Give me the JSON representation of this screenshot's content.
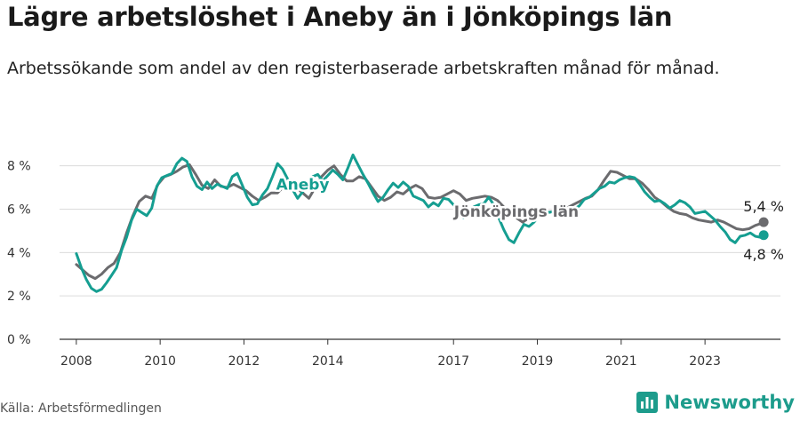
{
  "header": {
    "title": "Lägre arbetslöshet i Aneby än i Jönköpings län",
    "subtitle": "Arbetssökande som andel av den registerbaserade arbetskraften månad för månad."
  },
  "footer": {
    "source": "Källa: Arbetsförmedlingen",
    "brand": "Newsworthy"
  },
  "colors": {
    "aneby": "#159e91",
    "lan": "#6b6b6e",
    "grid": "#dcdcdc",
    "axis": "#333333",
    "brand": "#1d9c8c"
  },
  "chart_data": {
    "type": "line",
    "title": "Lägre arbetslöshet i Aneby än i Jönköpings län",
    "ylabel": "",
    "xlabel": "",
    "ylim": [
      0,
      8.6
    ],
    "xlim": [
      2007.6,
      2024.8
    ],
    "y_ticks": [
      0,
      2,
      4,
      6,
      8
    ],
    "y_tick_labels": [
      "0 %",
      "2 %",
      "4 %",
      "6 %",
      "8 %"
    ],
    "x_ticks": [
      2008,
      2010,
      2012,
      2014,
      2017,
      2019,
      2021,
      2023
    ],
    "x_tick_labels": [
      "2008",
      "2010",
      "2012",
      "2014",
      "2017",
      "2019",
      "2021",
      "2023"
    ],
    "grid": true,
    "series": [
      {
        "name": "Jönköpings län",
        "end_label": "5,4 %",
        "end_value": 5.4,
        "points": [
          [
            2008.0,
            3.45
          ],
          [
            2008.15,
            3.2
          ],
          [
            2008.3,
            2.95
          ],
          [
            2008.45,
            2.8
          ],
          [
            2008.6,
            3.0
          ],
          [
            2008.75,
            3.3
          ],
          [
            2008.9,
            3.5
          ],
          [
            2009.05,
            4.0
          ],
          [
            2009.2,
            4.9
          ],
          [
            2009.35,
            5.7
          ],
          [
            2009.5,
            6.35
          ],
          [
            2009.65,
            6.6
          ],
          [
            2009.8,
            6.5
          ],
          [
            2009.95,
            7.15
          ],
          [
            2010.1,
            7.5
          ],
          [
            2010.25,
            7.6
          ],
          [
            2010.4,
            7.75
          ],
          [
            2010.55,
            7.95
          ],
          [
            2010.7,
            8.05
          ],
          [
            2010.85,
            7.6
          ],
          [
            2011.0,
            7.1
          ],
          [
            2011.15,
            6.95
          ],
          [
            2011.3,
            7.35
          ],
          [
            2011.45,
            7.05
          ],
          [
            2011.6,
            7.0
          ],
          [
            2011.75,
            7.15
          ],
          [
            2011.9,
            7.0
          ],
          [
            2012.05,
            6.85
          ],
          [
            2012.2,
            6.6
          ],
          [
            2012.35,
            6.4
          ],
          [
            2012.5,
            6.55
          ],
          [
            2012.65,
            6.75
          ],
          [
            2012.8,
            6.75
          ],
          [
            2012.95,
            7.05
          ],
          [
            2013.1,
            7.3
          ],
          [
            2013.25,
            7.0
          ],
          [
            2013.4,
            6.75
          ],
          [
            2013.55,
            6.5
          ],
          [
            2013.7,
            7.0
          ],
          [
            2013.85,
            7.5
          ],
          [
            2014.0,
            7.8
          ],
          [
            2014.15,
            8.0
          ],
          [
            2014.3,
            7.6
          ],
          [
            2014.45,
            7.3
          ],
          [
            2014.6,
            7.3
          ],
          [
            2014.75,
            7.5
          ],
          [
            2014.9,
            7.4
          ],
          [
            2015.05,
            7.0
          ],
          [
            2015.2,
            6.6
          ],
          [
            2015.35,
            6.4
          ],
          [
            2015.5,
            6.55
          ],
          [
            2015.65,
            6.8
          ],
          [
            2015.8,
            6.7
          ],
          [
            2015.95,
            6.95
          ],
          [
            2016.1,
            7.1
          ],
          [
            2016.25,
            6.95
          ],
          [
            2016.4,
            6.55
          ],
          [
            2016.55,
            6.5
          ],
          [
            2016.7,
            6.55
          ],
          [
            2016.85,
            6.7
          ],
          [
            2017.0,
            6.85
          ],
          [
            2017.15,
            6.7
          ],
          [
            2017.3,
            6.4
          ],
          [
            2017.45,
            6.5
          ],
          [
            2017.6,
            6.55
          ],
          [
            2017.75,
            6.6
          ],
          [
            2017.9,
            6.55
          ],
          [
            2018.05,
            6.4
          ],
          [
            2018.2,
            6.1
          ],
          [
            2018.35,
            5.7
          ],
          [
            2018.5,
            5.6
          ],
          [
            2018.65,
            5.4
          ],
          [
            2018.8,
            5.6
          ],
          [
            2018.95,
            5.75
          ],
          [
            2019.1,
            5.9
          ],
          [
            2019.25,
            5.85
          ],
          [
            2019.4,
            5.9
          ],
          [
            2019.55,
            6.0
          ],
          [
            2019.7,
            6.05
          ],
          [
            2019.85,
            6.2
          ],
          [
            2020.0,
            6.35
          ],
          [
            2020.15,
            6.5
          ],
          [
            2020.3,
            6.6
          ],
          [
            2020.45,
            6.9
          ],
          [
            2020.6,
            7.35
          ],
          [
            2020.75,
            7.75
          ],
          [
            2020.9,
            7.7
          ],
          [
            2021.05,
            7.55
          ],
          [
            2021.2,
            7.4
          ],
          [
            2021.35,
            7.4
          ],
          [
            2021.5,
            7.2
          ],
          [
            2021.65,
            6.9
          ],
          [
            2021.8,
            6.55
          ],
          [
            2021.95,
            6.35
          ],
          [
            2022.1,
            6.1
          ],
          [
            2022.25,
            5.9
          ],
          [
            2022.4,
            5.8
          ],
          [
            2022.55,
            5.75
          ],
          [
            2022.7,
            5.6
          ],
          [
            2022.85,
            5.5
          ],
          [
            2023.0,
            5.45
          ],
          [
            2023.15,
            5.4
          ],
          [
            2023.3,
            5.5
          ],
          [
            2023.45,
            5.4
          ],
          [
            2023.6,
            5.25
          ],
          [
            2023.75,
            5.1
          ],
          [
            2023.9,
            5.05
          ],
          [
            2024.05,
            5.1
          ],
          [
            2024.2,
            5.25
          ],
          [
            2024.35,
            5.35
          ],
          [
            2024.4,
            5.4
          ]
        ]
      },
      {
        "name": "Aneby",
        "end_label": "4,8 %",
        "end_value": 4.8,
        "points": [
          [
            2008.0,
            3.95
          ],
          [
            2008.12,
            3.3
          ],
          [
            2008.24,
            2.75
          ],
          [
            2008.36,
            2.35
          ],
          [
            2008.48,
            2.2
          ],
          [
            2008.6,
            2.3
          ],
          [
            2008.72,
            2.6
          ],
          [
            2008.84,
            2.95
          ],
          [
            2008.96,
            3.3
          ],
          [
            2009.08,
            4.1
          ],
          [
            2009.2,
            4.7
          ],
          [
            2009.32,
            5.5
          ],
          [
            2009.44,
            6.0
          ],
          [
            2009.56,
            5.85
          ],
          [
            2009.68,
            5.7
          ],
          [
            2009.8,
            6.05
          ],
          [
            2009.92,
            7.05
          ],
          [
            2010.04,
            7.45
          ],
          [
            2010.16,
            7.55
          ],
          [
            2010.28,
            7.65
          ],
          [
            2010.4,
            8.1
          ],
          [
            2010.52,
            8.35
          ],
          [
            2010.64,
            8.2
          ],
          [
            2010.76,
            7.5
          ],
          [
            2010.88,
            7.05
          ],
          [
            2011.0,
            6.9
          ],
          [
            2011.12,
            7.25
          ],
          [
            2011.24,
            6.95
          ],
          [
            2011.36,
            7.15
          ],
          [
            2011.48,
            7.05
          ],
          [
            2011.6,
            6.95
          ],
          [
            2011.72,
            7.5
          ],
          [
            2011.84,
            7.65
          ],
          [
            2011.96,
            7.1
          ],
          [
            2012.08,
            6.55
          ],
          [
            2012.2,
            6.2
          ],
          [
            2012.32,
            6.25
          ],
          [
            2012.44,
            6.65
          ],
          [
            2012.56,
            6.95
          ],
          [
            2012.68,
            7.5
          ],
          [
            2012.8,
            8.1
          ],
          [
            2012.92,
            7.85
          ],
          [
            2013.04,
            7.4
          ],
          [
            2013.16,
            6.9
          ],
          [
            2013.28,
            6.5
          ],
          [
            2013.4,
            6.8
          ],
          [
            2013.52,
            7.2
          ],
          [
            2013.64,
            7.5
          ],
          [
            2013.76,
            7.6
          ],
          [
            2013.88,
            7.3
          ],
          [
            2014.0,
            7.55
          ],
          [
            2014.12,
            7.8
          ],
          [
            2014.24,
            7.6
          ],
          [
            2014.36,
            7.35
          ],
          [
            2014.48,
            7.9
          ],
          [
            2014.6,
            8.5
          ],
          [
            2014.72,
            8.05
          ],
          [
            2014.84,
            7.6
          ],
          [
            2014.96,
            7.2
          ],
          [
            2015.08,
            6.75
          ],
          [
            2015.2,
            6.35
          ],
          [
            2015.32,
            6.55
          ],
          [
            2015.44,
            6.9
          ],
          [
            2015.56,
            7.2
          ],
          [
            2015.68,
            7.0
          ],
          [
            2015.8,
            7.25
          ],
          [
            2015.92,
            7.05
          ],
          [
            2016.04,
            6.6
          ],
          [
            2016.16,
            6.5
          ],
          [
            2016.28,
            6.4
          ],
          [
            2016.4,
            6.1
          ],
          [
            2016.52,
            6.3
          ],
          [
            2016.64,
            6.15
          ],
          [
            2016.76,
            6.5
          ],
          [
            2016.88,
            6.45
          ],
          [
            2017.0,
            6.2
          ],
          [
            2017.12,
            5.95
          ],
          [
            2017.24,
            5.6
          ],
          [
            2017.36,
            5.75
          ],
          [
            2017.48,
            6.1
          ],
          [
            2017.6,
            6.2
          ],
          [
            2017.72,
            6.25
          ],
          [
            2017.84,
            6.55
          ],
          [
            2017.96,
            6.2
          ],
          [
            2018.08,
            5.6
          ],
          [
            2018.2,
            5.05
          ],
          [
            2018.32,
            4.6
          ],
          [
            2018.44,
            4.45
          ],
          [
            2018.56,
            4.9
          ],
          [
            2018.68,
            5.3
          ],
          [
            2018.8,
            5.2
          ],
          [
            2018.92,
            5.4
          ],
          [
            2019.04,
            5.7
          ],
          [
            2019.16,
            5.95
          ],
          [
            2019.28,
            5.85
          ],
          [
            2019.4,
            5.9
          ],
          [
            2019.52,
            5.95
          ],
          [
            2019.64,
            5.8
          ],
          [
            2019.76,
            5.85
          ],
          [
            2019.88,
            6.0
          ],
          [
            2020.0,
            6.15
          ],
          [
            2020.12,
            6.45
          ],
          [
            2020.24,
            6.55
          ],
          [
            2020.36,
            6.75
          ],
          [
            2020.48,
            6.95
          ],
          [
            2020.6,
            7.05
          ],
          [
            2020.72,
            7.25
          ],
          [
            2020.84,
            7.2
          ],
          [
            2020.96,
            7.35
          ],
          [
            2021.08,
            7.45
          ],
          [
            2021.2,
            7.5
          ],
          [
            2021.32,
            7.45
          ],
          [
            2021.44,
            7.15
          ],
          [
            2021.56,
            6.8
          ],
          [
            2021.68,
            6.55
          ],
          [
            2021.8,
            6.35
          ],
          [
            2021.92,
            6.4
          ],
          [
            2022.04,
            6.25
          ],
          [
            2022.16,
            6.05
          ],
          [
            2022.28,
            6.2
          ],
          [
            2022.4,
            6.4
          ],
          [
            2022.52,
            6.3
          ],
          [
            2022.64,
            6.1
          ],
          [
            2022.76,
            5.8
          ],
          [
            2022.88,
            5.85
          ],
          [
            2023.0,
            5.9
          ],
          [
            2023.12,
            5.7
          ],
          [
            2023.24,
            5.5
          ],
          [
            2023.36,
            5.2
          ],
          [
            2023.48,
            4.95
          ],
          [
            2023.6,
            4.6
          ],
          [
            2023.72,
            4.45
          ],
          [
            2023.84,
            4.75
          ],
          [
            2023.96,
            4.8
          ],
          [
            2024.08,
            4.9
          ],
          [
            2024.2,
            4.75
          ],
          [
            2024.32,
            4.7
          ],
          [
            2024.4,
            4.8
          ]
        ]
      }
    ],
    "annotations": [
      {
        "text": "Aneby",
        "series": "Aneby",
        "x": 2013.4,
        "y": 6.9
      },
      {
        "text": "Jönköpings län",
        "series": "Jönköpings län",
        "x": 2018.5,
        "y": 5.65
      }
    ]
  }
}
